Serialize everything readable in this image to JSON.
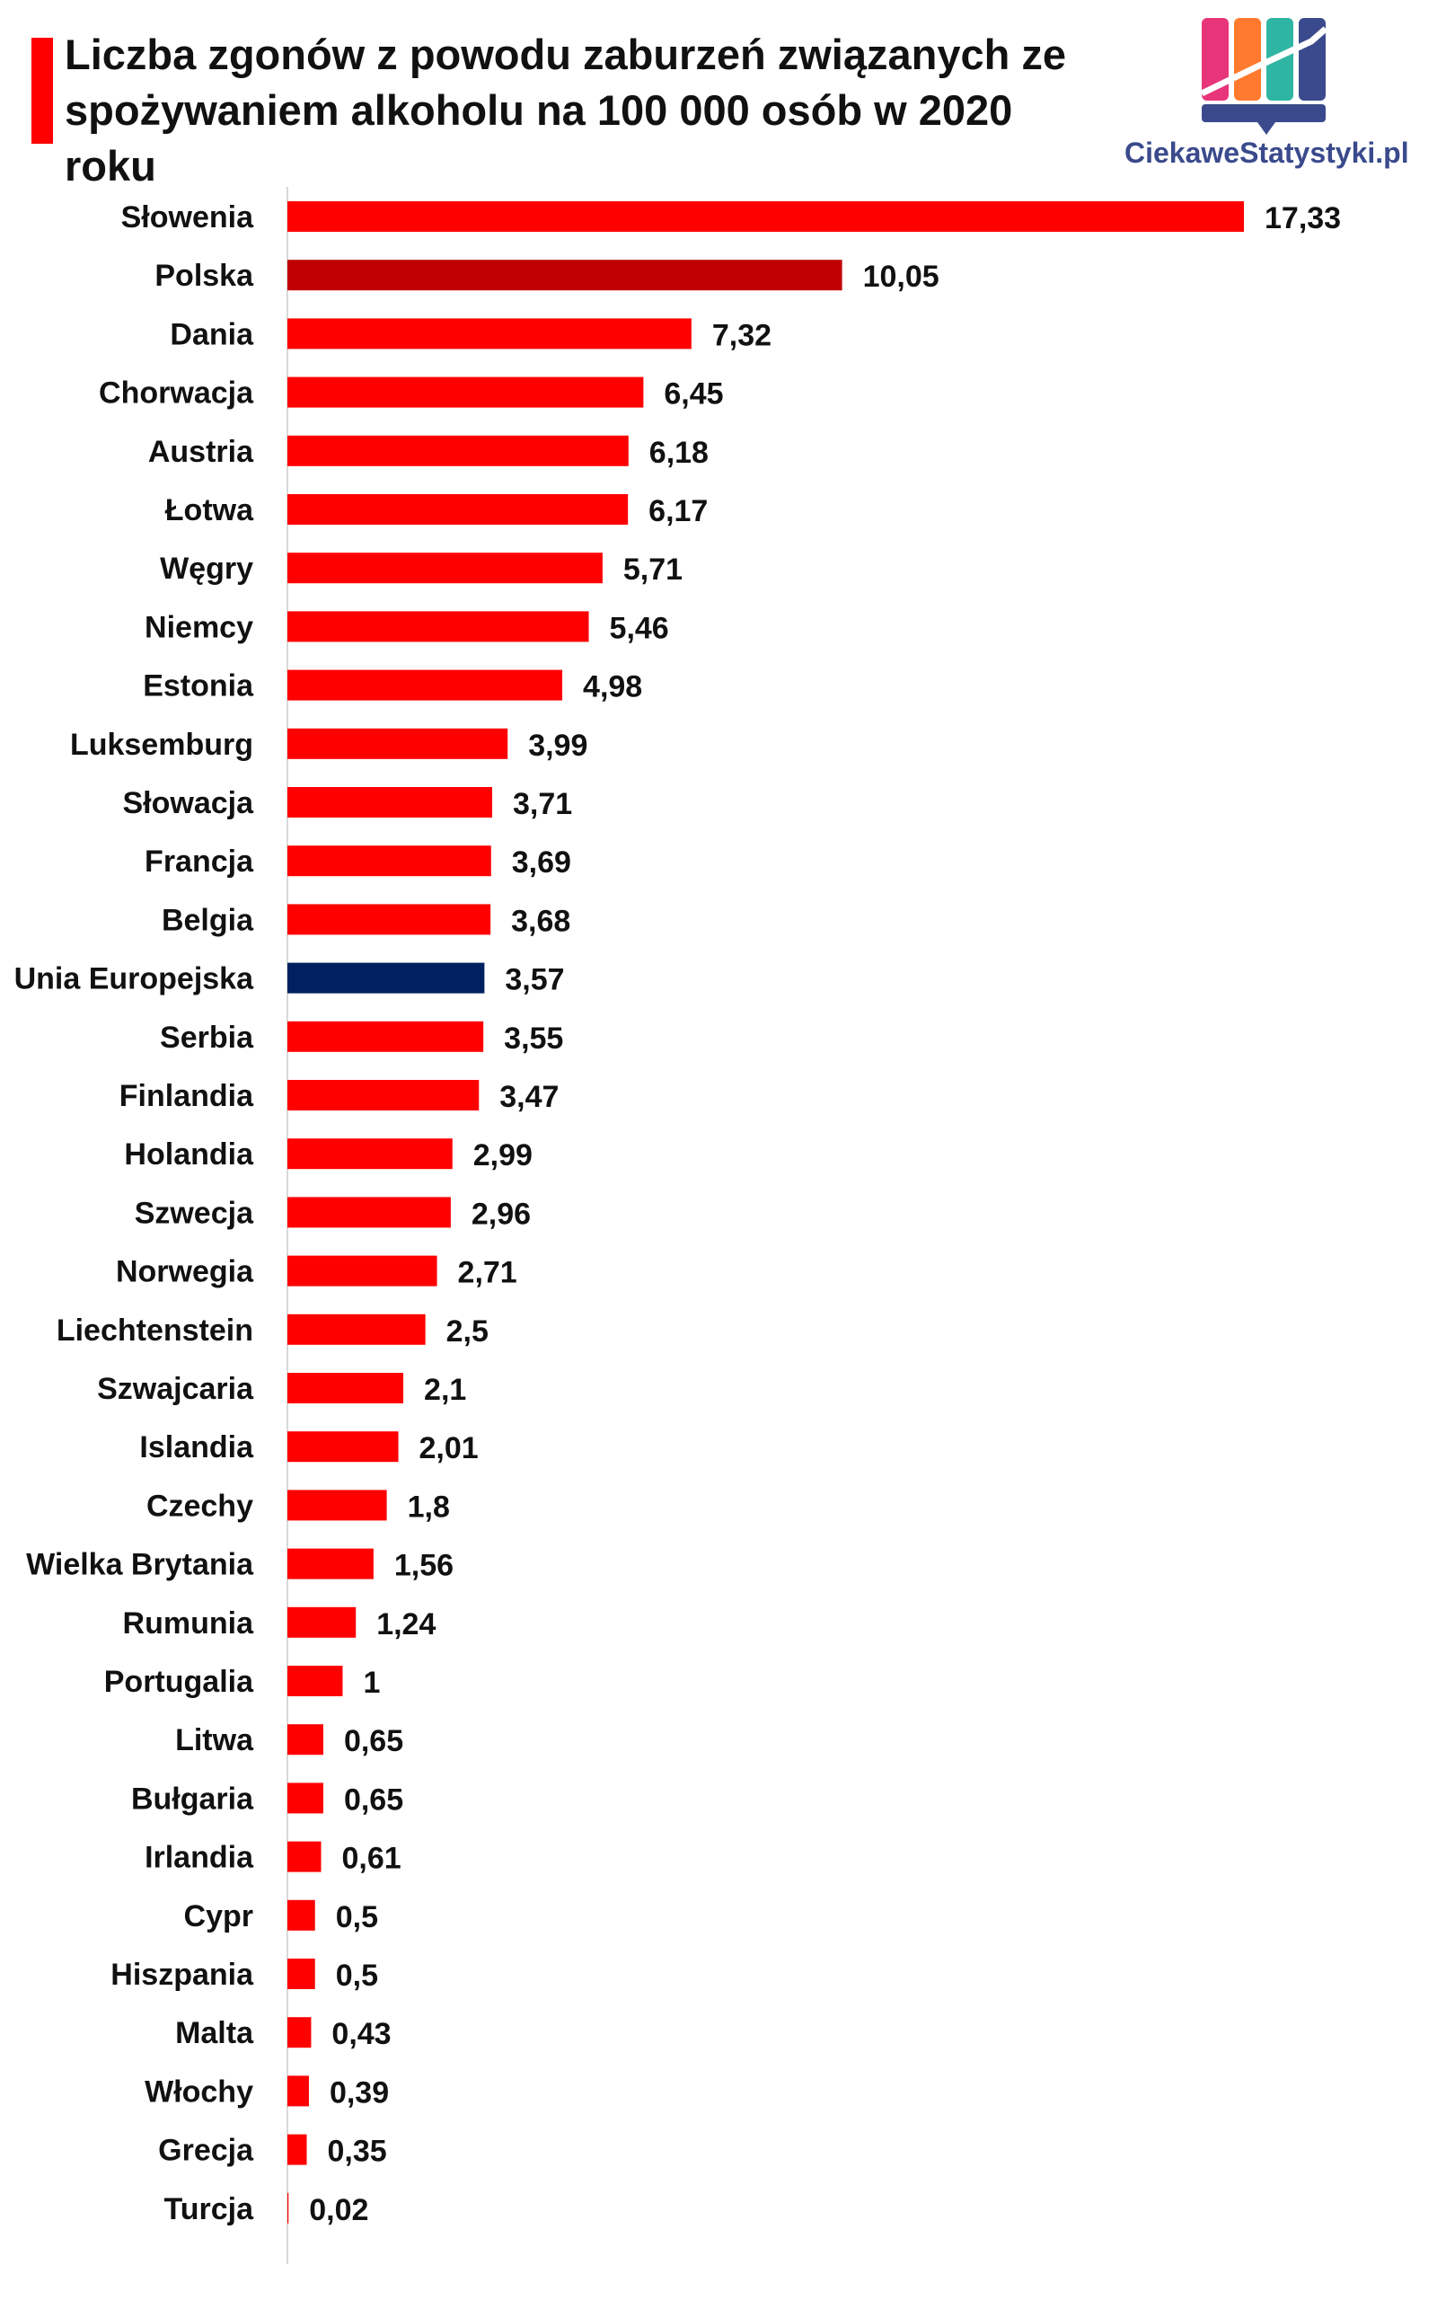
{
  "header": {
    "title": "Liczba zgonów z powodu zaburzeń związanych ze spożywaniem alkoholu na 100 000 osób w 2020 roku",
    "logo_text": "CiekaweStatystyki.pl"
  },
  "colors": {
    "default_bar": "#ff0000",
    "poland_bar": "#c00000",
    "eu_bar": "#002060",
    "axis": "#d9d9d9",
    "title_accent": "#ff0000",
    "logo": [
      "#e8357a",
      "#ff7a2e",
      "#2fb5a3",
      "#3a4a8c"
    ]
  },
  "chart_data": {
    "type": "bar",
    "orientation": "horizontal",
    "title": "Liczba zgonów z powodu zaburzeń związanych ze spożywaniem alkoholu na 100 000 osób w 2020 roku",
    "xlabel": "",
    "ylabel": "",
    "xlim": [
      0,
      17.33
    ],
    "grid": false,
    "legend": "none",
    "categories": [
      "Słowenia",
      "Polska",
      "Dania",
      "Chorwacja",
      "Austria",
      "Łotwa",
      "Węgry",
      "Niemcy",
      "Estonia",
      "Luksemburg",
      "Słowacja",
      "Francja",
      "Belgia",
      "Unia Europejska",
      "Serbia",
      "Finlandia",
      "Holandia",
      "Szwecja",
      "Norwegia",
      "Liechtenstein",
      "Szwajcaria",
      "Islandia",
      "Czechy",
      "Wielka Brytania",
      "Rumunia",
      "Portugalia",
      "Litwa",
      "Bułgaria",
      "Irlandia",
      "Cypr",
      "Hiszpania",
      "Malta",
      "Włochy",
      "Grecja",
      "Turcja"
    ],
    "values": [
      17.33,
      10.05,
      7.32,
      6.45,
      6.18,
      6.17,
      5.71,
      5.46,
      4.98,
      3.99,
      3.71,
      3.69,
      3.68,
      3.57,
      3.55,
      3.47,
      2.99,
      2.96,
      2.71,
      2.5,
      2.1,
      2.01,
      1.8,
      1.56,
      1.24,
      1,
      0.65,
      0.65,
      0.61,
      0.5,
      0.5,
      0.43,
      0.39,
      0.35,
      0.02
    ],
    "data_labels": [
      "17,33",
      "10,05",
      "7,32",
      "6,45",
      "6,18",
      "6,17",
      "5,71",
      "5,46",
      "4,98",
      "3,99",
      "3,71",
      "3,69",
      "3,68",
      "3,57",
      "3,55",
      "3,47",
      "2,99",
      "2,96",
      "2,71",
      "2,5",
      "2,1",
      "2,01",
      "1,8",
      "1,56",
      "1,24",
      "1",
      "0,65",
      "0,65",
      "0,61",
      "0,5",
      "0,5",
      "0,43",
      "0,39",
      "0,35",
      "0,02"
    ],
    "highlight": {
      "Polska": "#c00000",
      "Unia Europejska": "#002060"
    }
  }
}
